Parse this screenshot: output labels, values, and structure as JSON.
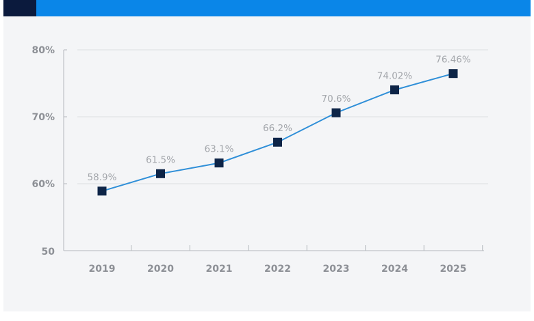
{
  "chart_data": {
    "type": "line",
    "title": "",
    "xlabel": "",
    "ylabel": "",
    "categories": [
      "2019",
      "2020",
      "2021",
      "2022",
      "2023",
      "2024",
      "2025"
    ],
    "values": [
      58.9,
      61.5,
      63.1,
      66.2,
      70.6,
      74.02,
      76.46
    ],
    "data_labels": [
      "58.9%",
      "61.5%",
      "63.1%",
      "66.2%",
      "70.6%",
      "74.02%",
      "76.46%"
    ],
    "ylim": [
      50,
      80
    ],
    "yticks": [
      50,
      60,
      70,
      80
    ],
    "ytick_labels": [
      "50",
      "60%",
      "70%",
      "80%"
    ],
    "grid": true,
    "colors": {
      "line": "#2f8fd8",
      "marker": "#0d2447",
      "header": "#0a86e8",
      "header_badge": "#0b1a3d"
    }
  }
}
